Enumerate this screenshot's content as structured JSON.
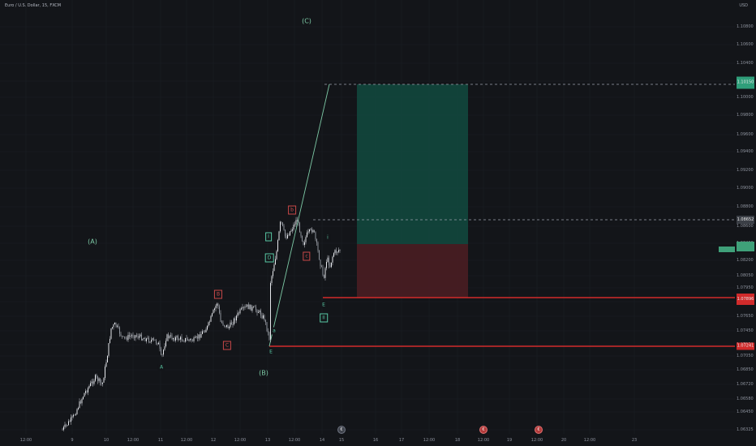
{
  "header": {
    "title": "Euro / U.S. Dollar, 15, FXCM",
    "currency": "USD"
  },
  "price_axis": {
    "labels": [
      "1.10800",
      "1.10600",
      "1.10400",
      "1.10200",
      "1.10000",
      "1.09800",
      "1.09600",
      "1.09400",
      "1.09200",
      "1.09000",
      "1.08800",
      "1.08600",
      "1.08400",
      "1.08200",
      "1.08050",
      "1.07950",
      "1.07800",
      "1.07650",
      "1.07450",
      "1.07250",
      "1.07050",
      "1.06850",
      "1.06720",
      "1.06580",
      "1.06450",
      "1.06325"
    ],
    "tags": [
      {
        "name": "target",
        "text": "1.10150",
        "color": "#2f9e7a"
      },
      {
        "name": "entry",
        "text": "1.08652",
        "color": "#3b3f46"
      },
      {
        "name": "current",
        "text": "",
        "color": "#3fa079"
      },
      {
        "name": "stop",
        "text": "1.07896",
        "color": "#d12b2b"
      },
      {
        "name": "level",
        "text": "1.07241",
        "color": "#d12b2b"
      }
    ]
  },
  "time_axis": {
    "labels": [
      "12:00",
      "9",
      "10",
      "12:00",
      "11",
      "12:00",
      "12",
      "12:00",
      "13",
      "12:00",
      "14",
      "15",
      "16",
      "17",
      "12:00",
      "18",
      "12:00",
      "19",
      "12:00",
      "20",
      "12:00",
      "23"
    ]
  },
  "events": [
    {
      "name": "event-marker-gray",
      "glyph": "€",
      "color": "gray"
    },
    {
      "name": "event-marker-red-1",
      "glyph": "€",
      "color": "red"
    },
    {
      "name": "event-marker-red-2",
      "glyph": "€",
      "color": "red"
    }
  ],
  "wave_labels": {
    "primary": [
      "(A)",
      "(B)",
      "(C)"
    ],
    "minor": [
      {
        "text": "A",
        "style": "green"
      },
      {
        "text": "B",
        "style": "red"
      },
      {
        "text": "C",
        "style": "red"
      },
      {
        "text": "D",
        "style": "green-box"
      },
      {
        "text": "E",
        "style": "green"
      },
      {
        "text": "a",
        "style": "green"
      },
      {
        "text": "b",
        "style": "red"
      },
      {
        "text": "c",
        "style": "red"
      },
      {
        "text": "I",
        "style": "green-box"
      },
      {
        "text": "II",
        "style": "green-box"
      },
      {
        "text": "i",
        "style": "green-box"
      },
      {
        "text": "E",
        "style": "green"
      }
    ]
  },
  "colors": {
    "background": "#131519",
    "candle": "#d9dbe0",
    "profit_zone": "#124a40",
    "loss_zone": "#4a1d22",
    "wave_line": "#7ecba7",
    "level_red": "#d12b2b"
  }
}
